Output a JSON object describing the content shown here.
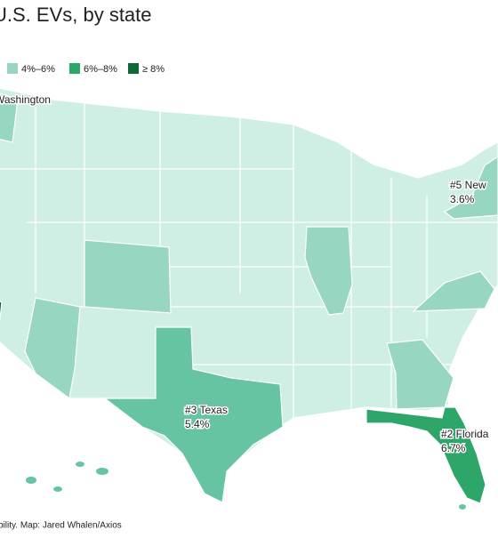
{
  "header": {
    "title": "U.S. EVs, by state"
  },
  "legend": [
    {
      "label": "4%–6%"
    },
    {
      "label": "6%–8%"
    },
    {
      "label": "≥ 8%"
    }
  ],
  "labels": {
    "washington": "Washington",
    "new_york": "#5  New",
    "new_york_share": "3.6%",
    "texas": "#3  Texas",
    "texas_share": "5.4%",
    "florida": "#2  Florida",
    "florida_share": "6.7%"
  },
  "footer": {
    "credit": "bility. Map: Jared Whalen/Axios"
  }
}
